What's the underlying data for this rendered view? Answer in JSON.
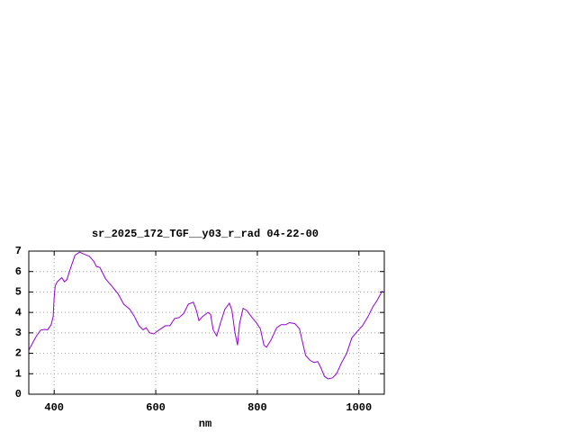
{
  "chart_data": {
    "type": "line",
    "title": "sr_2025_172_TGF__y03_r_rad 04-22-00",
    "xlabel": "nm",
    "x": [
      350,
      364,
      373,
      381,
      387,
      394,
      398,
      400,
      402,
      406,
      415,
      420,
      425,
      432,
      441,
      450,
      459,
      469,
      478,
      483,
      490,
      501,
      513,
      526,
      537,
      549,
      558,
      567,
      575,
      581,
      588,
      596,
      607,
      619,
      628,
      637,
      646,
      655,
      664,
      674,
      680,
      685,
      692,
      703,
      708,
      713,
      720,
      727,
      736,
      745,
      750,
      756,
      761,
      765,
      772,
      779,
      788,
      798,
      806,
      813,
      818,
      827,
      838,
      847,
      856,
      863,
      874,
      883,
      888,
      895,
      904,
      912,
      919,
      925,
      932,
      939,
      948,
      956,
      965,
      976,
      986,
      996,
      1007,
      1018,
      1028,
      1035,
      1046
    ],
    "values": [
      2.16,
      2.8,
      3.13,
      3.17,
      3.15,
      3.4,
      3.8,
      4.75,
      5.3,
      5.5,
      5.7,
      5.5,
      5.6,
      6.15,
      6.8,
      6.95,
      6.85,
      6.75,
      6.5,
      6.25,
      6.2,
      5.65,
      5.3,
      4.9,
      4.4,
      4.15,
      3.8,
      3.35,
      3.15,
      3.25,
      3.0,
      2.95,
      3.15,
      3.35,
      3.35,
      3.7,
      3.75,
      3.95,
      4.4,
      4.5,
      4.1,
      3.6,
      3.8,
      4.0,
      3.9,
      3.15,
      2.85,
      3.45,
      4.15,
      4.45,
      4.1,
      3.0,
      2.4,
      3.45,
      4.2,
      4.1,
      3.8,
      3.5,
      3.2,
      2.4,
      2.3,
      2.65,
      3.25,
      3.4,
      3.4,
      3.5,
      3.45,
      3.2,
      2.65,
      1.9,
      1.65,
      1.55,
      1.6,
      1.3,
      0.88,
      0.75,
      0.8,
      1.0,
      1.5,
      2.0,
      2.75,
      3.05,
      3.35,
      3.8,
      4.3,
      4.55,
      5.05
    ],
    "color": "#9400d3",
    "xlim": [
      350,
      1050
    ],
    "xticks": [
      400,
      600,
      800,
      1000
    ],
    "ylim": [
      0,
      7
    ],
    "yticks": [
      0,
      1,
      2,
      3,
      4,
      5,
      6,
      7
    ],
    "grid": true
  }
}
